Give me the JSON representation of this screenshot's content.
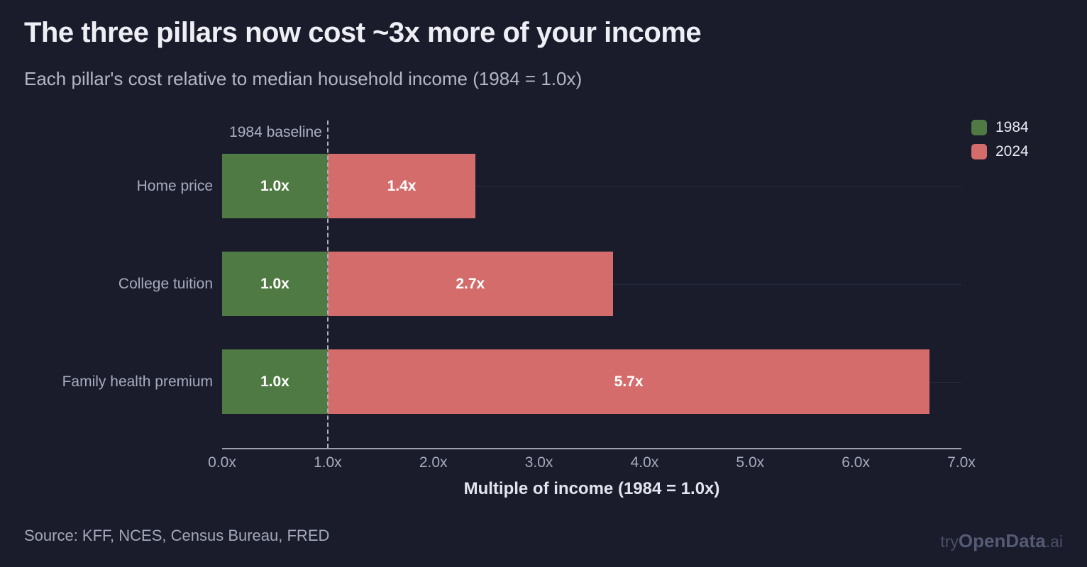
{
  "header": {
    "title": "The three pillars now cost ~3x more of your income",
    "subtitle": "Each pillar's cost relative to median household income (1984 = 1.0x)"
  },
  "chart_data": {
    "type": "bar",
    "orientation": "horizontal",
    "stacked": true,
    "categories": [
      "Home price",
      "College tuition",
      "Family health premium"
    ],
    "series": [
      {
        "name": "1984",
        "color": "#4f7a43",
        "values": [
          1.0,
          1.0,
          1.0
        ],
        "labels": [
          "1.0x",
          "1.0x",
          "1.0x"
        ]
      },
      {
        "name": "2024",
        "color": "#d46c6c",
        "values": [
          1.4,
          2.7,
          5.7
        ],
        "labels": [
          "1.4x",
          "2.7x",
          "5.7x"
        ]
      }
    ],
    "xlabel": "Multiple of income (1984 = 1.0x)",
    "x_ticks": [
      "0.0x",
      "1.0x",
      "2.0x",
      "3.0x",
      "4.0x",
      "5.0x",
      "6.0x",
      "7.0x"
    ],
    "xlim": [
      0,
      7
    ],
    "baseline": {
      "x": 1.0,
      "label": "1984 baseline"
    },
    "grid": "horizontal-per-category",
    "legend_position": "top-right",
    "colors": {
      "background": "#1a1c2c",
      "bar_1984": "#4f7a43",
      "bar_2024": "#d46c6c"
    }
  },
  "footer": {
    "source": "Source: KFF, NCES, Census Bureau, FRED",
    "watermark": {
      "prefix": "try",
      "brand": "OpenData",
      "suffix": ".ai"
    }
  }
}
